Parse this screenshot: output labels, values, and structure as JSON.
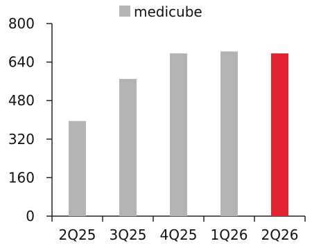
{
  "chart_data": {
    "type": "bar",
    "categories": [
      "2Q25",
      "3Q25",
      "4Q25",
      "1Q26",
      "2Q26"
    ],
    "series": [
      {
        "name": "medicube",
        "values": [
          395,
          570,
          676,
          684,
          676
        ]
      }
    ],
    "ylim": [
      0,
      800
    ],
    "yticks": [
      "0",
      "160",
      "320",
      "480",
      "640",
      "800"
    ],
    "ytick_values": [
      0,
      160,
      320,
      480,
      640,
      800
    ],
    "grid": false,
    "legend_position": "top",
    "colors": {
      "bar": "#b3b3b3",
      "highlight": "#e3232f",
      "axis": "#222222"
    },
    "highlight_index": 4
  }
}
